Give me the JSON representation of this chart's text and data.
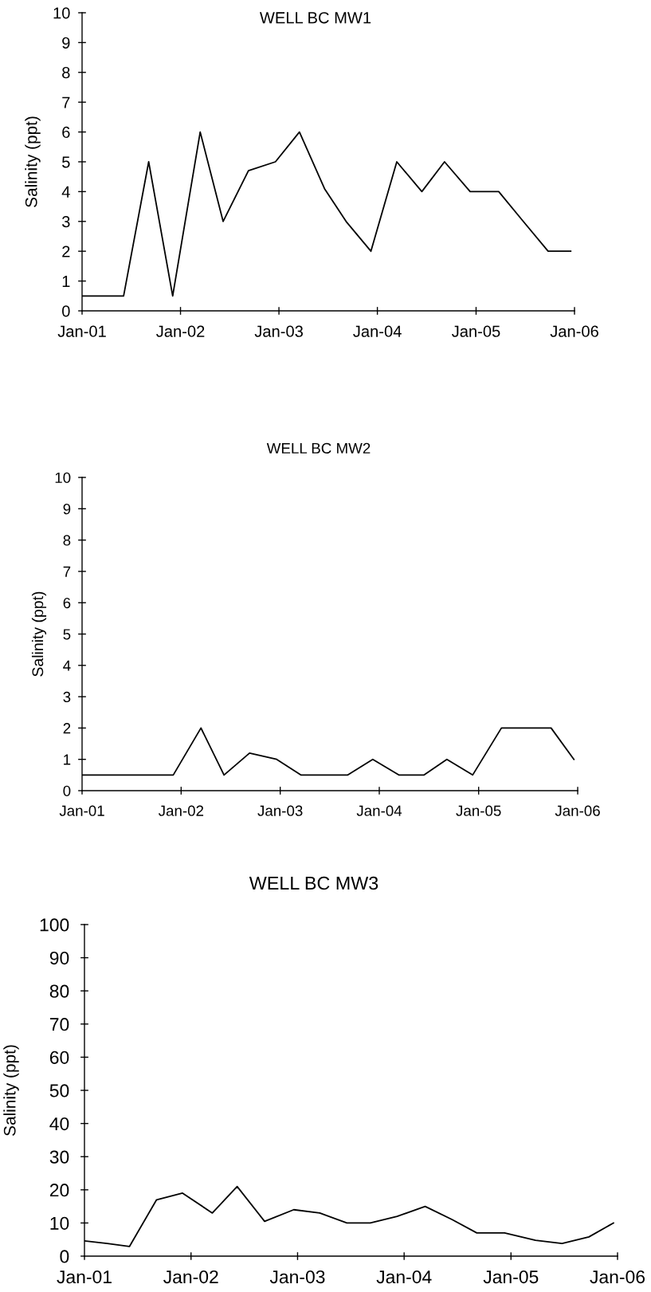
{
  "chart_data": [
    {
      "type": "line",
      "title": "WELL BC MW1",
      "ylabel": "Salinity (ppt)",
      "color": "#000000",
      "line_style": "solid",
      "x": [
        "2001-01-01",
        "2001-03-20",
        "2001-06-04",
        "2001-09-05",
        "2001-12-03",
        "2002-03-15",
        "2002-06-08",
        "2002-09-10",
        "2002-12-19",
        "2003-03-18",
        "2003-06-19",
        "2003-09-07",
        "2003-12-08",
        "2004-03-13",
        "2004-06-14",
        "2004-09-06",
        "2004-12-10",
        "2005-03-26",
        "2005-06-25",
        "2005-09-25",
        "2005-12-18"
      ],
      "values": [
        0.5,
        0.5,
        0.5,
        5,
        0.5,
        6,
        3,
        4.7,
        5,
        6,
        4.1,
        3,
        2,
        5,
        4,
        5,
        4,
        4,
        3,
        2,
        2
      ],
      "xlim": [
        "2001-01-01",
        "2006-01-01"
      ],
      "xticks": [
        {
          "value": "2001-01-01",
          "label": "Jan-01"
        },
        {
          "value": "2002-01-01",
          "label": "Jan-02"
        },
        {
          "value": "2003-01-01",
          "label": "Jan-03"
        },
        {
          "value": "2004-01-01",
          "label": "Jan-04"
        },
        {
          "value": "2005-01-01",
          "label": "Jan-05"
        },
        {
          "value": "2006-01-01",
          "label": "Jan-06"
        }
      ],
      "ylim": [
        0,
        10
      ],
      "yticks": [
        0,
        1,
        2,
        3,
        4,
        5,
        6,
        7,
        8,
        9,
        10
      ]
    },
    {
      "type": "line",
      "title": "WELL BC MW2",
      "ylabel": "Salinity (ppt)",
      "color": "#000000",
      "line_style": "solid",
      "x": [
        "2001-01-01",
        "2001-03-20",
        "2001-06-04",
        "2001-09-05",
        "2001-12-03",
        "2002-03-15",
        "2002-06-08",
        "2002-09-10",
        "2002-12-19",
        "2003-03-18",
        "2003-06-19",
        "2003-09-07",
        "2003-12-08",
        "2004-03-13",
        "2004-06-14",
        "2004-09-06",
        "2004-12-10",
        "2005-03-26",
        "2005-06-25",
        "2005-09-25",
        "2005-12-18"
      ],
      "values": [
        0.5,
        0.5,
        0.5,
        0.5,
        0.5,
        2,
        0.5,
        1.2,
        1,
        0.5,
        0.5,
        0.5,
        1,
        0.5,
        0.5,
        1,
        0.5,
        2,
        2,
        2,
        1
      ],
      "xlim": [
        "2001-01-01",
        "2006-01-01"
      ],
      "xticks": [
        {
          "value": "2001-01-01",
          "label": "Jan-01"
        },
        {
          "value": "2002-01-01",
          "label": "Jan-02"
        },
        {
          "value": "2003-01-01",
          "label": "Jan-03"
        },
        {
          "value": "2004-01-01",
          "label": "Jan-04"
        },
        {
          "value": "2005-01-01",
          "label": "Jan-05"
        },
        {
          "value": "2006-01-01",
          "label": "Jan-06"
        }
      ],
      "ylim": [
        0,
        10
      ],
      "yticks": [
        0,
        1,
        2,
        3,
        4,
        5,
        6,
        7,
        8,
        9,
        10
      ]
    },
    {
      "type": "line",
      "title": "WELL BC MW3",
      "ylabel": "Salinity (ppt)",
      "color": "#000000",
      "line_style": "solid",
      "x": [
        "2001-01-01",
        "2001-03-20",
        "2001-06-04",
        "2001-09-05",
        "2001-12-03",
        "2002-03-15",
        "2002-06-08",
        "2002-09-10",
        "2002-12-19",
        "2003-03-18",
        "2003-06-19",
        "2003-09-07",
        "2003-12-08",
        "2004-03-13",
        "2004-06-14",
        "2004-09-06",
        "2004-12-10",
        "2005-03-26",
        "2005-06-25",
        "2005-09-25",
        "2005-12-18"
      ],
      "values": [
        4.6,
        3.8,
        2.9,
        17,
        19,
        13,
        21,
        10.5,
        14,
        13,
        10,
        10,
        12,
        15,
        11,
        7,
        7,
        4.8,
        3.8,
        5.8,
        10
      ],
      "xlim": [
        "2001-01-01",
        "2006-01-01"
      ],
      "xticks": [
        {
          "value": "2001-01-01",
          "label": "Jan-01"
        },
        {
          "value": "2002-01-01",
          "label": "Jan-02"
        },
        {
          "value": "2003-01-01",
          "label": "Jan-03"
        },
        {
          "value": "2004-01-01",
          "label": "Jan-04"
        },
        {
          "value": "2005-01-01",
          "label": "Jan-05"
        },
        {
          "value": "2006-01-01",
          "label": "Jan-06"
        }
      ],
      "ylim": [
        0,
        100
      ],
      "yticks": [
        0,
        10,
        20,
        30,
        40,
        50,
        60,
        70,
        80,
        90,
        100
      ]
    }
  ]
}
